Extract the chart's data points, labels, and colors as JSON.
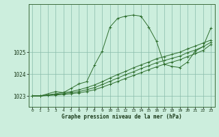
{
  "title": "Graphe pression niveau de la mer (hPa)",
  "bg_color": "#cceedd",
  "grid_color": "#88bbaa",
  "line_color": "#2d6e2d",
  "xlim": [
    -0.5,
    23.5
  ],
  "ylim": [
    1022.5,
    1027.2
  ],
  "yticks": [
    1023,
    1024,
    1025
  ],
  "xticks": [
    0,
    1,
    2,
    3,
    4,
    5,
    6,
    7,
    8,
    9,
    10,
    11,
    12,
    13,
    14,
    15,
    16,
    17,
    18,
    19,
    20,
    21,
    22,
    23
  ],
  "series": [
    {
      "x": [
        0,
        1,
        3,
        4,
        5,
        6,
        7,
        8,
        9,
        10,
        11,
        12,
        13,
        14,
        15,
        16,
        17,
        18,
        19,
        20,
        21,
        22,
        23
      ],
      "y": [
        1023.0,
        1023.0,
        1023.2,
        1023.15,
        1023.35,
        1023.55,
        1023.65,
        1024.4,
        1025.05,
        1026.15,
        1026.55,
        1026.65,
        1026.7,
        1026.65,
        1026.15,
        1025.5,
        1024.45,
        1024.35,
        1024.3,
        1024.55,
        1025.05,
        1025.25,
        1026.1
      ]
    },
    {
      "x": [
        0,
        1,
        2,
        3,
        4,
        5,
        6,
        7,
        8,
        9,
        10,
        11,
        12,
        13,
        14,
        15,
        16,
        17,
        18,
        19,
        20,
        21,
        22,
        23
      ],
      "y": [
        1023.0,
        1023.0,
        1023.05,
        1023.1,
        1023.15,
        1023.2,
        1023.28,
        1023.38,
        1023.5,
        1023.65,
        1023.82,
        1023.98,
        1024.12,
        1024.28,
        1024.42,
        1024.55,
        1024.7,
        1024.8,
        1024.9,
        1025.0,
        1025.15,
        1025.28,
        1025.42,
        1025.55
      ]
    },
    {
      "x": [
        0,
        1,
        2,
        3,
        4,
        5,
        6,
        7,
        8,
        9,
        10,
        11,
        12,
        13,
        14,
        15,
        16,
        17,
        18,
        19,
        20,
        21,
        22,
        23
      ],
      "y": [
        1023.0,
        1023.0,
        1023.03,
        1023.07,
        1023.1,
        1023.15,
        1023.2,
        1023.28,
        1023.38,
        1023.52,
        1023.67,
        1023.82,
        1023.97,
        1024.1,
        1024.25,
        1024.38,
        1024.52,
        1024.62,
        1024.72,
        1024.82,
        1024.98,
        1025.1,
        1025.25,
        1025.45
      ]
    },
    {
      "x": [
        0,
        1,
        2,
        3,
        4,
        5,
        6,
        7,
        8,
        9,
        10,
        11,
        12,
        13,
        14,
        15,
        16,
        17,
        18,
        19,
        20,
        21,
        22,
        23
      ],
      "y": [
        1023.0,
        1023.0,
        1023.02,
        1023.04,
        1023.07,
        1023.1,
        1023.14,
        1023.2,
        1023.28,
        1023.4,
        1023.53,
        1023.66,
        1023.8,
        1023.93,
        1024.06,
        1024.2,
        1024.33,
        1024.45,
        1024.55,
        1024.65,
        1024.8,
        1024.93,
        1025.08,
        1025.35
      ]
    }
  ]
}
